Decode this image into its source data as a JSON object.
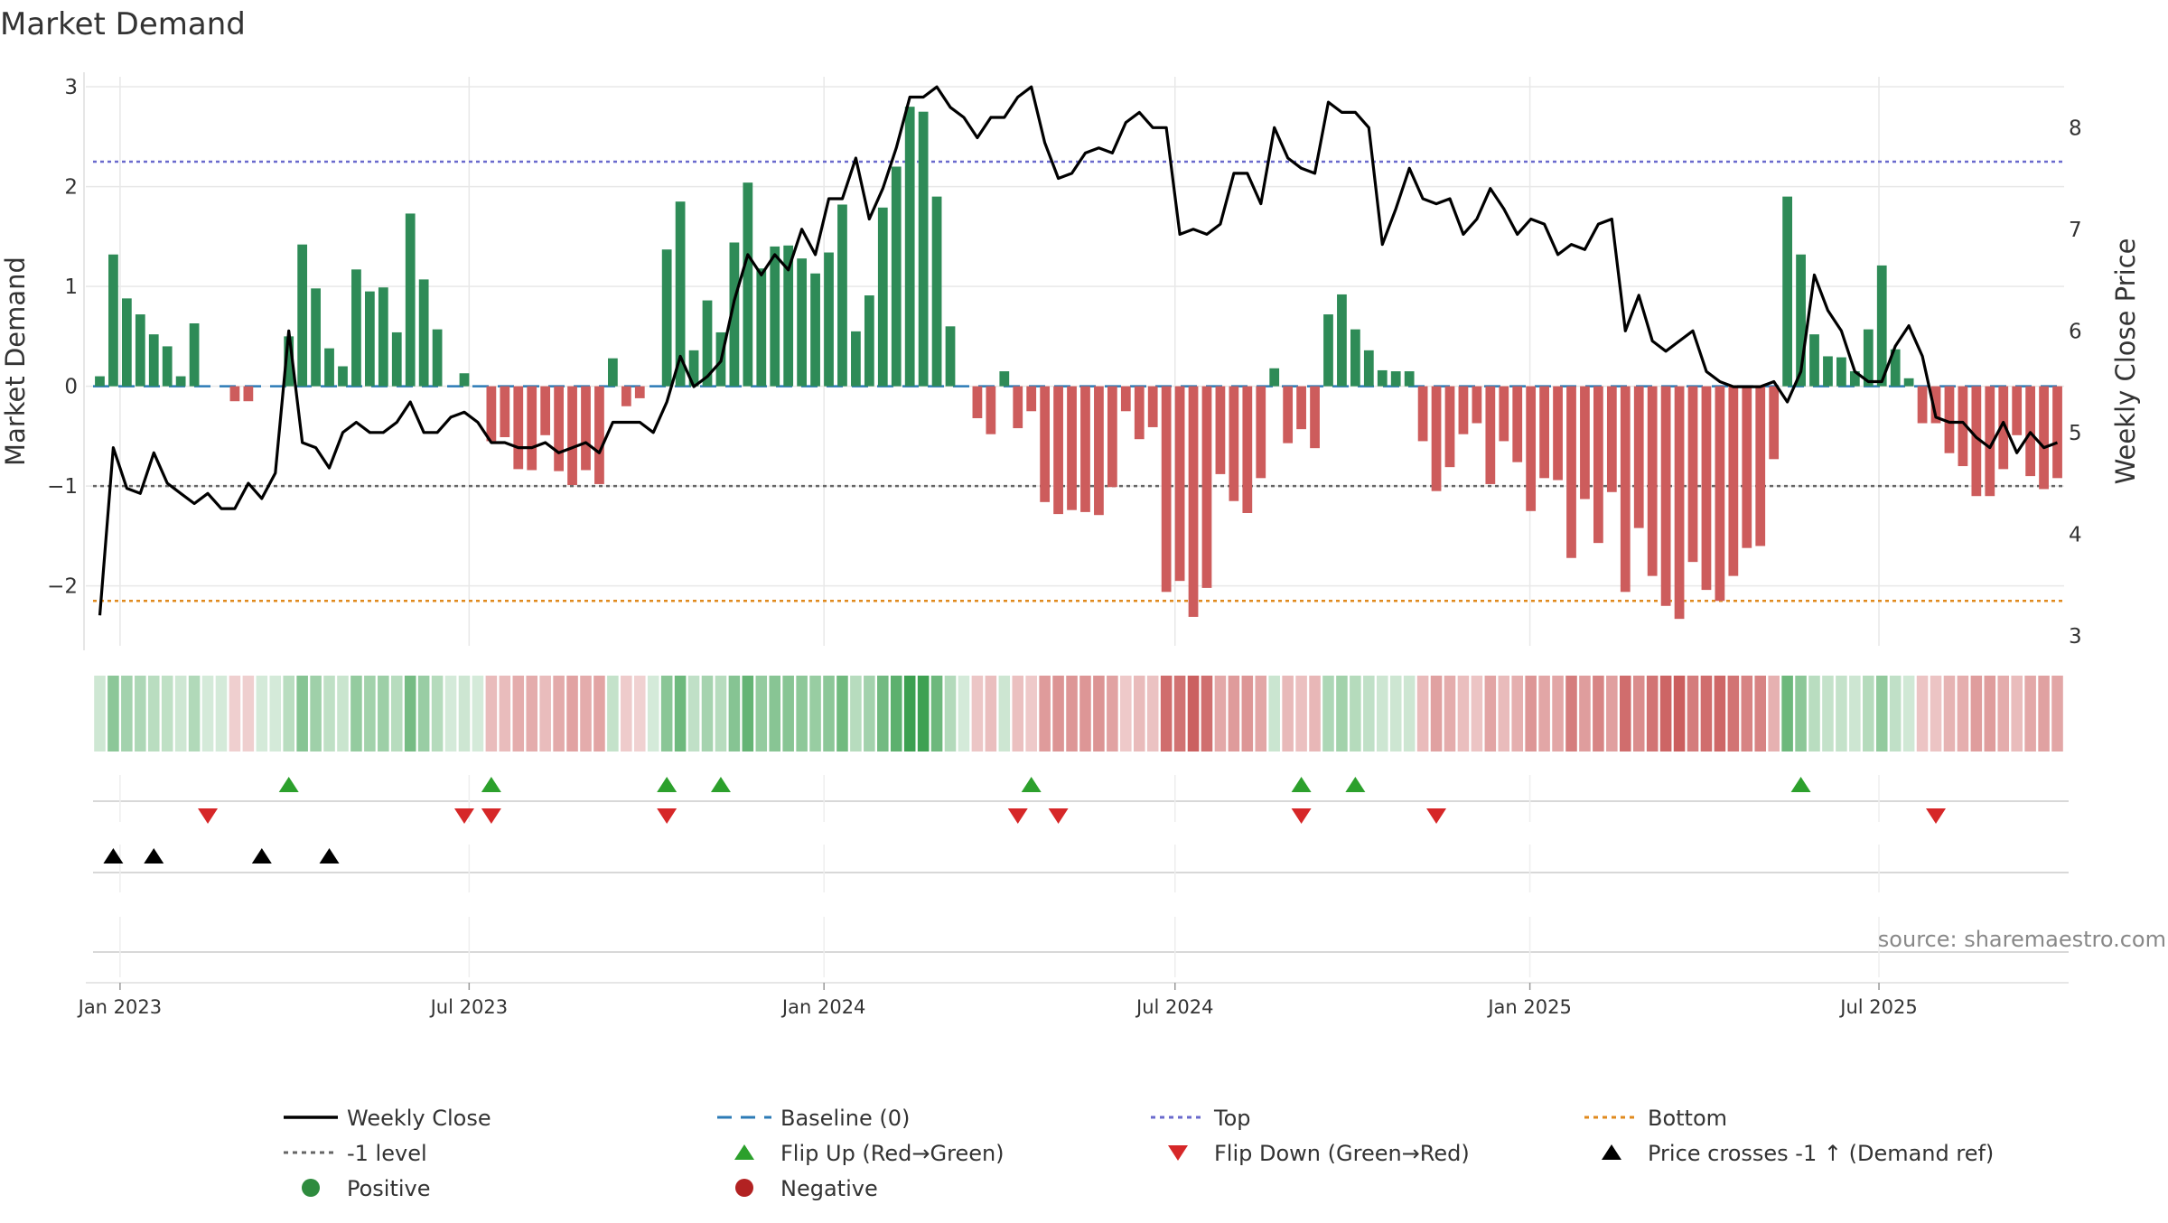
{
  "chart_data": {
    "type": "bar",
    "title": "Market Demand",
    "ylabel_left": "Market Demand",
    "ylabel_right": "Weekly Close Price",
    "ylim_left": [
      -2.6,
      3.1
    ],
    "ylim_right": [
      2.9,
      8.5
    ],
    "yticks_left": [
      3,
      2,
      1,
      0,
      -1,
      -2
    ],
    "yticks_left_labels": [
      "3",
      "2",
      "1",
      "0",
      "−1",
      "−2"
    ],
    "yticks_right": [
      8,
      7,
      6,
      5,
      4,
      3
    ],
    "yticks_right_labels": [
      "8",
      "7",
      "6",
      "5",
      "4",
      "3"
    ],
    "reference_lines": {
      "top": 2.25,
      "bottom": -2.15,
      "minus_one": -1,
      "baseline": 0
    },
    "start_date": "2022-12-18",
    "date_ticks": [
      {
        "date": "2023-01-01",
        "label": "Jan 2023"
      },
      {
        "date": "2023-07-01",
        "label": "Jul 2023"
      },
      {
        "date": "2024-01-01",
        "label": "Jan 2024"
      },
      {
        "date": "2024-07-01",
        "label": "Jul 2024"
      },
      {
        "date": "2025-01-01",
        "label": "Jan 2025"
      },
      {
        "date": "2025-07-01",
        "label": "Jul 2025"
      }
    ],
    "series": [
      {
        "name": "Market Demand",
        "axis": "left",
        "values": [
          0.1,
          1.32,
          0.88,
          0.72,
          0.52,
          0.4,
          0.1,
          0.63,
          0,
          0,
          -0.15,
          -0.15,
          0,
          0,
          0.5,
          1.42,
          0.98,
          0.38,
          0.2,
          1.17,
          0.95,
          0.99,
          0.54,
          1.73,
          1.07,
          0.57,
          0,
          0.13,
          0,
          -0.55,
          -0.51,
          -0.83,
          -0.84,
          -0.49,
          -0.85,
          -0.99,
          -0.84,
          -0.98,
          0.28,
          -0.2,
          -0.12,
          0,
          1.37,
          1.85,
          0.36,
          0.86,
          0.54,
          1.44,
          2.04,
          1.18,
          1.4,
          1.41,
          1.28,
          1.13,
          1.34,
          1.82,
          0.55,
          0.91,
          1.79,
          2.2,
          2.8,
          2.75,
          1.9,
          0.6,
          0,
          -0.32,
          -0.48,
          0.15,
          -0.42,
          -0.25,
          -1.16,
          -1.28,
          -1.24,
          -1.26,
          -1.29,
          -1.01,
          -0.25,
          -0.53,
          -0.41,
          -2.06,
          -1.95,
          -2.31,
          -2.02,
          -0.88,
          -1.15,
          -1.27,
          -0.92,
          0.18,
          -0.57,
          -0.43,
          -0.62,
          0.72,
          0.92,
          0.57,
          0.36,
          0.16,
          0.15,
          0.15,
          -0.55,
          -1.05,
          -0.81,
          -0.48,
          -0.37,
          -0.98,
          -0.55,
          -0.76,
          -1.25,
          -0.92,
          -0.94,
          -1.72,
          -1.13,
          -1.57,
          -1.06,
          -2.06,
          -1.42,
          -1.9,
          -2.2,
          -2.33,
          -1.76,
          -2.04,
          -2.15,
          -1.9,
          -1.62,
          -1.6,
          -0.73,
          1.9,
          1.32,
          0.52,
          0.3,
          0.29,
          0.15,
          0.57,
          1.21,
          0.37,
          0.08,
          -0.37,
          -0.37,
          -0.67,
          -0.8,
          -1.1,
          -1.1,
          -0.83,
          -0.49,
          -0.9,
          -1.03,
          -0.92
        ]
      },
      {
        "name": "Weekly Close",
        "axis": "right",
        "values": [
          3.2,
          4.85,
          4.45,
          4.4,
          4.8,
          4.5,
          4.4,
          4.3,
          4.4,
          4.25,
          4.25,
          4.5,
          4.35,
          4.6,
          6.0,
          4.9,
          4.85,
          4.65,
          5.0,
          5.1,
          5.0,
          5.0,
          5.1,
          5.3,
          5.0,
          5.0,
          5.15,
          5.2,
          5.1,
          4.9,
          4.9,
          4.85,
          4.85,
          4.9,
          4.8,
          4.85,
          4.9,
          4.8,
          5.1,
          5.1,
          5.1,
          5.0,
          5.3,
          5.75,
          5.45,
          5.55,
          5.7,
          6.3,
          6.75,
          6.55,
          6.75,
          6.6,
          7.0,
          6.75,
          7.3,
          7.3,
          7.7,
          7.1,
          7.4,
          7.8,
          8.3,
          8.3,
          8.4,
          8.2,
          8.1,
          7.9,
          8.1,
          8.1,
          8.3,
          8.4,
          7.85,
          7.5,
          7.55,
          7.75,
          7.8,
          7.75,
          8.05,
          8.15,
          8.0,
          8.0,
          6.95,
          7.0,
          6.95,
          7.05,
          7.55,
          7.55,
          7.25,
          8.0,
          7.7,
          7.6,
          7.55,
          8.25,
          8.15,
          8.15,
          8.0,
          6.85,
          7.2,
          7.6,
          7.3,
          7.25,
          7.3,
          6.95,
          7.1,
          7.4,
          7.2,
          6.95,
          7.1,
          7.05,
          6.75,
          6.85,
          6.8,
          7.05,
          7.1,
          6.0,
          6.35,
          5.9,
          5.8,
          5.9,
          6.0,
          5.6,
          5.5,
          5.45,
          5.45,
          5.45,
          5.5,
          5.3,
          5.6,
          6.55,
          6.2,
          6.0,
          5.6,
          5.5,
          5.5,
          5.85,
          6.05,
          5.75,
          5.15,
          5.1,
          5.1,
          4.95,
          4.85,
          5.1,
          4.8,
          5.0,
          4.85,
          4.9
        ]
      }
    ],
    "flip_up_weeks": [
      14,
      29,
      42,
      46,
      69,
      89,
      93,
      126
    ],
    "flip_down_weeks": [
      8,
      27,
      29,
      42,
      68,
      71,
      89,
      99,
      136
    ],
    "price_cross_weeks": [
      1,
      4,
      12,
      17
    ],
    "legend": [
      {
        "label": "Weekly Close",
        "marker": "line-solid",
        "color": "#000000"
      },
      {
        "label": "Baseline (0)",
        "marker": "line-dash",
        "color": "#2c7bb6"
      },
      {
        "label": "Top",
        "marker": "line-dot",
        "color": "#6a6acd"
      },
      {
        "label": "Bottom",
        "marker": "line-dot",
        "color": "#e08a1e"
      },
      {
        "label": "-1 level",
        "marker": "line-dot",
        "color": "#666666"
      },
      {
        "label": "Flip Up (Red→Green)",
        "marker": "triangle-up",
        "color": "#2ca02c"
      },
      {
        "label": "Flip Down (Green→Red)",
        "marker": "triangle-down",
        "color": "#d62728"
      },
      {
        "label": "Price crosses -1 ↑ (Demand ref)",
        "marker": "triangle-up",
        "color": "#000000"
      },
      {
        "label": "Positive",
        "marker": "circle",
        "color": "#2e8b3e"
      },
      {
        "label": "Negative",
        "marker": "circle",
        "color": "#b22222"
      }
    ],
    "source_text": "source: sharemaestro.com"
  },
  "colors": {
    "positive_bar": "#2e8b57",
    "negative_bar": "#cd5c5c",
    "price_line": "#000000",
    "baseline": "#2c7bb6",
    "top": "#6a6acd",
    "bottom": "#e08a1e",
    "minus_one": "#666666",
    "flip_up": "#2ca02c",
    "flip_down": "#d62728",
    "cross": "#000000",
    "grid": "#e8e8e8",
    "heat_pos_rgb": [
      60,
      160,
      80
    ],
    "heat_neg_rgb": [
      195,
      70,
      70
    ]
  }
}
